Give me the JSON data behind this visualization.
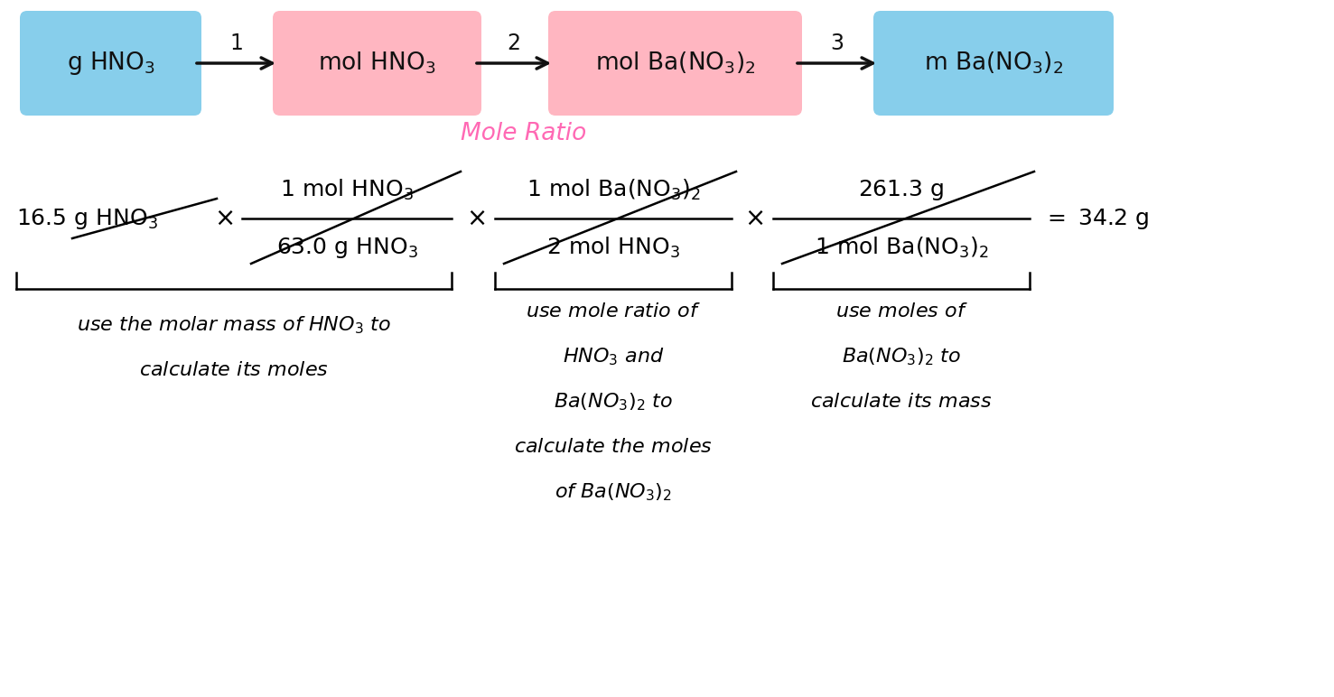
{
  "bg_color": "#ffffff",
  "box_blue": "#87CEEB",
  "box_pink": "#FFB6C1",
  "arrow_color": "#111111",
  "pink_text_color": "#FF69B4",
  "label_color": "#111111",
  "fig_width": 14.77,
  "fig_height": 7.72
}
